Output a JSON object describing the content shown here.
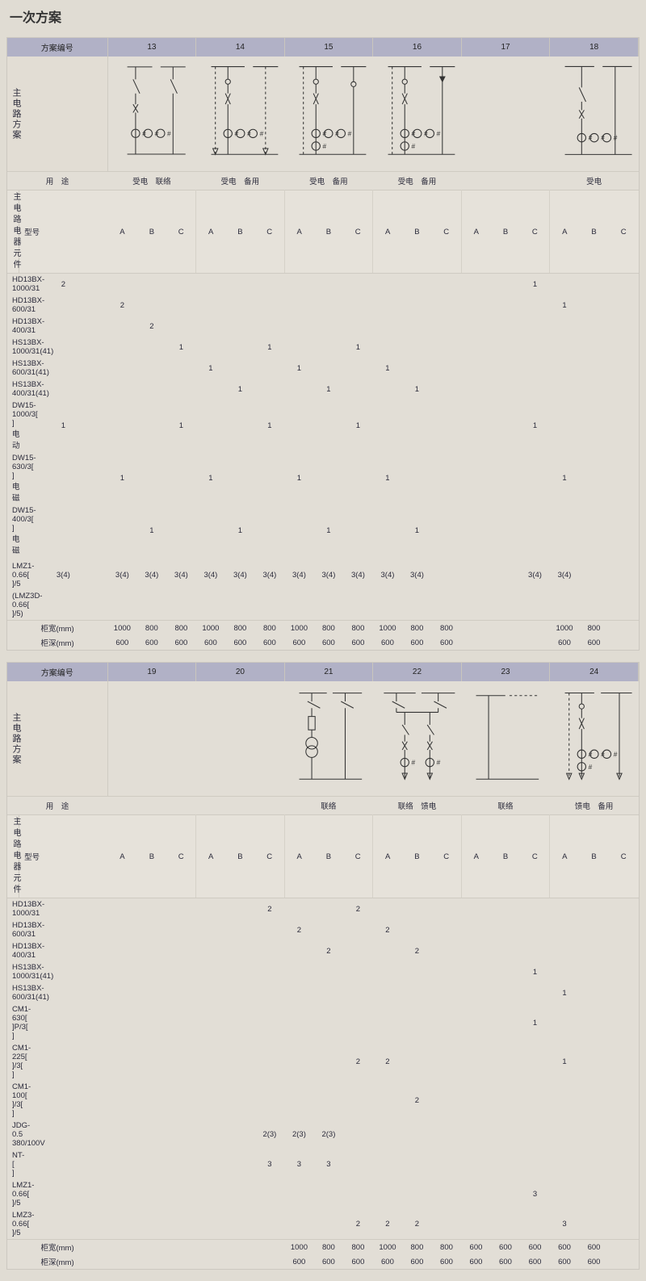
{
  "page": {
    "title": "一次方案"
  },
  "labels": {
    "scheme_no": "方案编号",
    "main_circuit": "主电路方案",
    "usage": "用　途",
    "model": "型号",
    "components": "主电路电器元件",
    "cab_width": "柜宽(mm)",
    "cab_depth": "柜深(mm)",
    "A": "A",
    "B": "B",
    "C": "C"
  },
  "table1": {
    "scheme_nos": [
      "13",
      "14",
      "15",
      "16",
      "17",
      "18"
    ],
    "usages": [
      "受电　联络",
      "受电　备用",
      "受电　备用",
      "受电　备用",
      "",
      "受电"
    ],
    "models": [
      "HD13BX-1000/31",
      "HD13BX-600/31",
      "HD13BX-400/31",
      "HS13BX-1000/31(41)",
      "HS13BX-600/31(41)",
      "HS13BX-400/31(41)",
      "DW15-1000/3[ ]电动",
      "DW15-630/3[ ]电磁",
      "DW15-400/3[ ]电磁",
      "",
      "LMZ1-0.66[ ]/5",
      "(LMZ3D-0.66[ ]/5)"
    ],
    "cells": [
      [
        "2",
        "",
        "",
        "",
        "",
        "",
        "",
        "",
        "",
        "",
        "",
        "",
        "",
        "",
        "",
        "1",
        "",
        ""
      ],
      [
        "",
        "2",
        "",
        "",
        "",
        "",
        "",
        "",
        "",
        "",
        "",
        "",
        "",
        "",
        "",
        "",
        "1",
        ""
      ],
      [
        "",
        "",
        "2",
        "",
        "",
        "",
        "",
        "",
        "",
        "",
        "",
        "",
        "",
        "",
        "",
        "",
        "",
        ""
      ],
      [
        "",
        "",
        "",
        "1",
        "",
        "",
        "1",
        "",
        "",
        "1",
        "",
        "",
        "",
        "",
        "",
        "",
        "",
        ""
      ],
      [
        "",
        "",
        "",
        "",
        "1",
        "",
        "",
        "1",
        "",
        "",
        "1",
        "",
        "",
        "",
        "",
        "",
        "",
        ""
      ],
      [
        "",
        "",
        "",
        "",
        "",
        "1",
        "",
        "",
        "1",
        "",
        "",
        "1",
        "",
        "",
        "",
        "",
        "",
        ""
      ],
      [
        "1",
        "",
        "",
        "1",
        "",
        "",
        "1",
        "",
        "",
        "1",
        "",
        "",
        "",
        "",
        "",
        "1",
        "",
        ""
      ],
      [
        "",
        "1",
        "",
        "",
        "1",
        "",
        "",
        "1",
        "",
        "",
        "1",
        "",
        "",
        "",
        "",
        "",
        "1",
        ""
      ],
      [
        "",
        "",
        "1",
        "",
        "",
        "1",
        "",
        "",
        "1",
        "",
        "",
        "1",
        "",
        "",
        "",
        "",
        "",
        ""
      ],
      [
        "",
        "",
        "",
        "",
        "",
        "",
        "",
        "",
        "",
        "",
        "",
        "",
        "",
        "",
        "",
        "",
        "",
        ""
      ],
      [
        "3(4)",
        "3(4)",
        "3(4)",
        "3(4)",
        "3(4)",
        "3(4)",
        "3(4)",
        "3(4)",
        "3(4)",
        "3(4)",
        "3(4)",
        "3(4)",
        "",
        "",
        "",
        "3(4)",
        "3(4)",
        ""
      ],
      [
        "",
        "",
        "",
        "",
        "",
        "",
        "",
        "",
        "",
        "",
        "",
        "",
        "",
        "",
        "",
        "",
        "",
        ""
      ]
    ],
    "width": [
      "1000",
      "800",
      "800",
      "1000",
      "800",
      "800",
      "1000",
      "800",
      "800",
      "1000",
      "800",
      "800",
      "",
      "",
      "",
      "1000",
      "800",
      ""
    ],
    "depth": [
      "600",
      "600",
      "600",
      "600",
      "600",
      "600",
      "600",
      "600",
      "600",
      "600",
      "600",
      "600",
      "",
      "",
      "",
      "600",
      "600",
      ""
    ]
  },
  "table2": {
    "scheme_nos": [
      "19",
      "20",
      "21",
      "22",
      "23",
      "24"
    ],
    "usages": [
      "",
      "",
      "联络",
      "联络　馈电",
      "联络",
      "馈电　备用"
    ],
    "models": [
      "HD13BX-1000/31",
      "HD13BX-600/31",
      "HD13BX-400/31",
      "HS13BX-1000/31(41)",
      "HS13BX-600/31(41)",
      "CM1-630[ ]P/3[ ]",
      "CM1-225[ ]/3[ ]",
      "CM1-100[ ]/3[ ]",
      "JDG-0.5  380/100V",
      "NT-[ ]",
      "LMZ1-0.66[ ]/5",
      "LMZ3-0.66[ ]/5"
    ],
    "cells": [
      [
        "",
        "",
        "",
        "",
        "",
        "",
        "2",
        "",
        "",
        "2",
        "",
        "",
        "",
        "",
        "",
        "",
        "",
        ""
      ],
      [
        "",
        "",
        "",
        "",
        "",
        "",
        "",
        "2",
        "",
        "",
        "2",
        "",
        "",
        "",
        "",
        "",
        "",
        ""
      ],
      [
        "",
        "",
        "",
        "",
        "",
        "",
        "",
        "",
        "2",
        "",
        "",
        "2",
        "",
        "",
        "",
        "",
        "",
        ""
      ],
      [
        "",
        "",
        "",
        "",
        "",
        "",
        "",
        "",
        "",
        "",
        "",
        "",
        "",
        "",
        "",
        "1",
        "",
        ""
      ],
      [
        "",
        "",
        "",
        "",
        "",
        "",
        "",
        "",
        "",
        "",
        "",
        "",
        "",
        "",
        "",
        "",
        "1",
        ""
      ],
      [
        "",
        "",
        "",
        "",
        "",
        "",
        "",
        "",
        "",
        "",
        "",
        "",
        "",
        "",
        "",
        "1",
        "",
        ""
      ],
      [
        "",
        "",
        "",
        "",
        "",
        "",
        "",
        "",
        "",
        "2",
        "2",
        "",
        "",
        "",
        "",
        "",
        "1",
        ""
      ],
      [
        "",
        "",
        "",
        "",
        "",
        "",
        "",
        "",
        "",
        "",
        "",
        "2",
        "",
        "",
        "",
        "",
        "",
        ""
      ],
      [
        "",
        "",
        "",
        "",
        "",
        "",
        "2(3)",
        "2(3)",
        "2(3)",
        "",
        "",
        "",
        "",
        "",
        "",
        "",
        "",
        ""
      ],
      [
        "",
        "",
        "",
        "",
        "",
        "",
        "3",
        "3",
        "3",
        "",
        "",
        "",
        "",
        "",
        "",
        "",
        "",
        ""
      ],
      [
        "",
        "",
        "",
        "",
        "",
        "",
        "",
        "",
        "",
        "",
        "",
        "",
        "",
        "",
        "",
        "3",
        "",
        ""
      ],
      [
        "",
        "",
        "",
        "",
        "",
        "",
        "",
        "",
        "",
        "2",
        "2",
        "2",
        "",
        "",
        "",
        "",
        "3",
        ""
      ]
    ],
    "width": [
      "",
      "",
      "",
      "",
      "",
      "",
      "1000",
      "800",
      "800",
      "1000",
      "800",
      "800",
      "600",
      "600",
      "600",
      "600",
      "600",
      ""
    ],
    "depth": [
      "",
      "",
      "",
      "",
      "",
      "",
      "600",
      "600",
      "600",
      "600",
      "600",
      "600",
      "600",
      "600",
      "600",
      "600",
      "600",
      ""
    ]
  },
  "style": {
    "header_bg": "#b1b1c6",
    "body_bg": "#e2ded6",
    "page_bg": "#e0dcd3",
    "border": "#cfcbc2",
    "font_small": 9.5,
    "font_title": 16
  }
}
